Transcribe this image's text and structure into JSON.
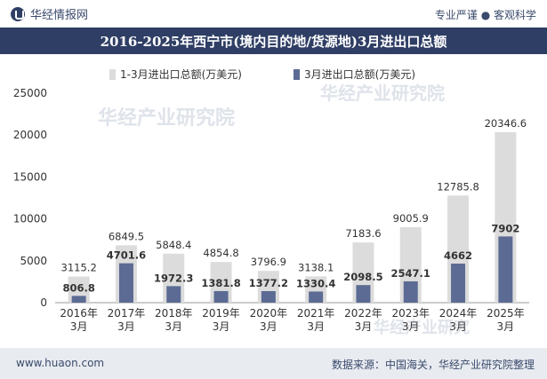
{
  "header": {
    "brand": "华经情报网",
    "tagline": "专业严谨 ● 客观科学",
    "title": "2016-2025年西宁市(境内目的地/货源地)3月进出口总额"
  },
  "footer": {
    "website": "www.huaon.com",
    "source": "数据来源：中国海关，华经产业研究院整理"
  },
  "colors": {
    "header_bg": "#2f3e64",
    "series_total": "#dcdcdc",
    "series_march": "#5b6b93"
  },
  "chart_data": {
    "type": "bar",
    "title": "2016-2025年西宁市(境内目的地/货源地)3月进出口总额",
    "xlabel": "",
    "ylabel": "",
    "ylim": [
      0,
      25000
    ],
    "yticks": [
      0,
      5000,
      10000,
      15000,
      20000,
      25000
    ],
    "legend_position": "top-center",
    "categories": [
      [
        "2016年",
        "3月"
      ],
      [
        "2017年",
        "3月"
      ],
      [
        "2018年",
        "3月"
      ],
      [
        "2019年",
        "3月"
      ],
      [
        "2020年",
        "3月"
      ],
      [
        "2021年",
        "3月"
      ],
      [
        "2022年",
        "3月"
      ],
      [
        "2023年",
        "3月"
      ],
      [
        "2024年",
        "3月"
      ],
      [
        "2025年",
        "3月"
      ]
    ],
    "series": [
      {
        "name": "1-3月进出口总额(万美元)",
        "values": [
          3115.2,
          6849.5,
          5848.4,
          4854.8,
          3796.9,
          3138.1,
          7183.6,
          9005.9,
          12785.8,
          20346.6
        ],
        "labels": [
          "3115.2",
          "6849.5",
          "5848.4",
          "4854.8",
          "3796.9",
          "3138.1",
          "7183.6",
          "9005.9",
          "12785.8",
          "20346.6"
        ]
      },
      {
        "name": "3月进出口总额(万美元)",
        "values": [
          806.8,
          4701.6,
          1972.3,
          1381.8,
          1377.2,
          1330.4,
          2098.5,
          2547.1,
          4662,
          7902
        ],
        "labels": [
          "806.8",
          "4701.6",
          "1972.3",
          "1381.8",
          "1377.2",
          "1330.4",
          "2098.5",
          "2547.1",
          "4662",
          "7902"
        ]
      }
    ]
  }
}
